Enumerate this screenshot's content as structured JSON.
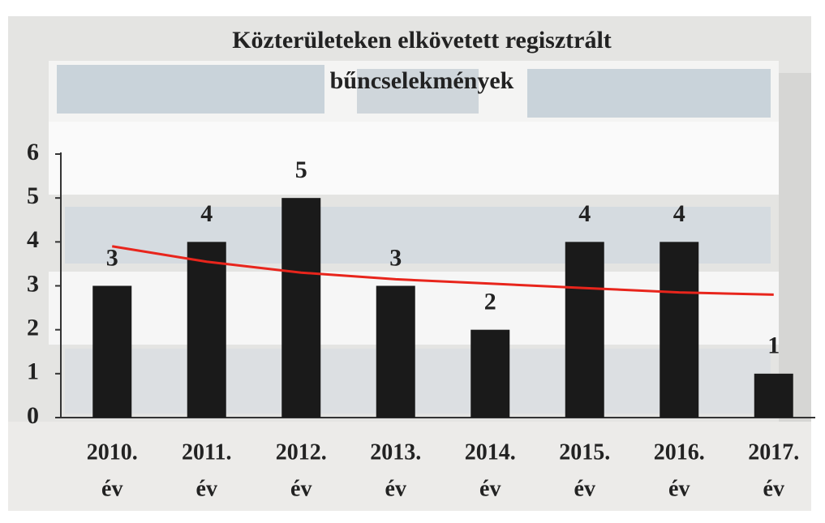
{
  "chart_data": {
    "type": "bar",
    "title": [
      "Közterületeken elkövetett regisztrált",
      "bűncselekmények"
    ],
    "categories": [
      [
        "2010.",
        "év"
      ],
      [
        "2011.",
        "év"
      ],
      [
        "2012.",
        "év"
      ],
      [
        "2013.",
        "év"
      ],
      [
        "2014.",
        "év"
      ],
      [
        "2015.",
        "év"
      ],
      [
        "2016.",
        "év"
      ],
      [
        "2017.",
        "év"
      ]
    ],
    "values": [
      3,
      4,
      5,
      3,
      2,
      4,
      4,
      1
    ],
    "color": "#1a1a1a",
    "trendline": {
      "color": "#e8251c",
      "values": [
        3.9,
        3.55,
        3.3,
        3.15,
        3.05,
        2.95,
        2.85,
        2.8
      ]
    },
    "ylim": [
      0,
      6
    ],
    "yticks": [
      0,
      1,
      2,
      3,
      4,
      5,
      6
    ]
  }
}
